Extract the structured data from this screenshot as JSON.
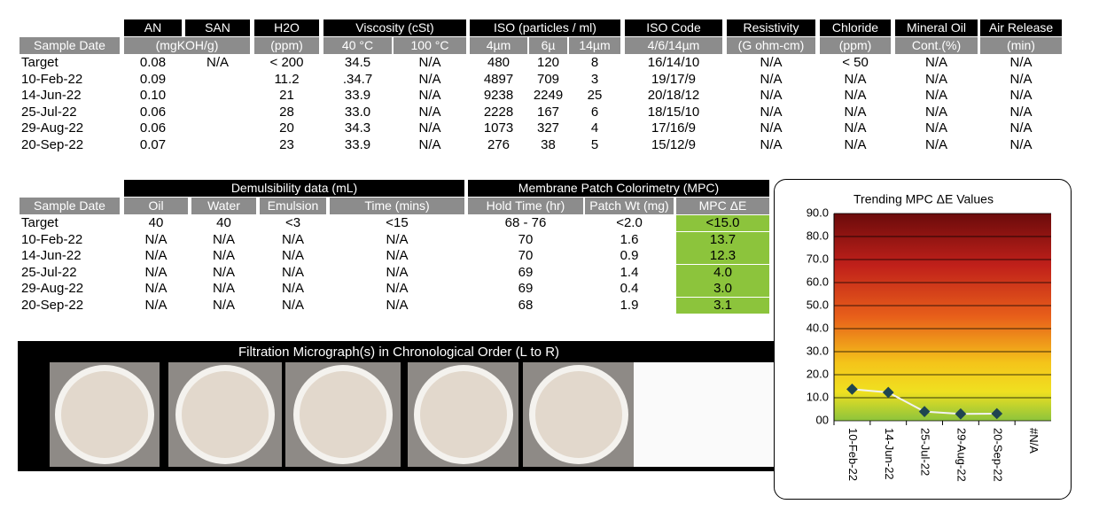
{
  "table1": {
    "group_headers": [
      "AN",
      "SAN",
      "H2O",
      "Viscosity (cSt)",
      "ISO (particles / ml)",
      "ISO Code",
      "Resistivity",
      "Chloride",
      "Mineral Oil",
      "Air Release"
    ],
    "sub_headers": [
      "Sample Date",
      "(mgKOH/g)",
      "(ppm)",
      "40 °C",
      "100 °C",
      "4µm",
      "6µ",
      "14µm",
      "4/6/14µm",
      "(G ohm-cm)",
      "(ppm)",
      "Cont.(%)",
      "(min)"
    ],
    "rows": [
      [
        "Target",
        "0.08",
        "N/A",
        "< 200",
        "34.5",
        "N/A",
        "480",
        "120",
        "8",
        "16/14/10",
        "N/A",
        "< 50",
        "N/A",
        "N/A"
      ],
      [
        "10-Feb-22",
        "0.09",
        null,
        "11.2",
        ".34.7",
        "N/A",
        "4897",
        "709",
        "3",
        "19/17/9",
        "N/A",
        "N/A",
        "N/A",
        "N/A"
      ],
      [
        "14-Jun-22",
        "0.10",
        null,
        "21",
        "33.9",
        "N/A",
        "9238",
        "2249",
        "25",
        "20/18/12",
        "N/A",
        "N/A",
        "N/A",
        "N/A"
      ],
      [
        "25-Jul-22",
        "0.06",
        null,
        "28",
        "33.0",
        "N/A",
        "2228",
        "167",
        "6",
        "18/15/10",
        "N/A",
        "N/A",
        "N/A",
        "N/A"
      ],
      [
        "29-Aug-22",
        "0.06",
        null,
        "20",
        "34.3",
        "N/A",
        "1073",
        "327",
        "4",
        "17/16/9",
        "N/A",
        "N/A",
        "N/A",
        "N/A"
      ],
      [
        "20-Sep-22",
        "0.07",
        null,
        "23",
        "33.9",
        "N/A",
        "276",
        "38",
        "5",
        "15/12/9",
        "N/A",
        "N/A",
        "N/A",
        "N/A"
      ]
    ]
  },
  "table2": {
    "group_headers": [
      "Demulsibility data (mL)",
      "Membrane Patch Colorimetry (MPC)"
    ],
    "sub_headers": [
      "Sample Date",
      "Oil",
      "Water",
      "Emulsion",
      "Time (mins)",
      "Hold Time (hr)",
      "Patch Wt (mg)",
      "MPC ΔE"
    ],
    "rows": [
      [
        "Target",
        "40",
        "40",
        "<3",
        "<15",
        "68 - 76",
        "<2.0",
        "<15.0"
      ],
      [
        "10-Feb-22",
        "N/A",
        "N/A",
        "N/A",
        "N/A",
        "70",
        "1.6",
        "13.7"
      ],
      [
        "14-Jun-22",
        "N/A",
        "N/A",
        "N/A",
        "N/A",
        "70",
        "0.9",
        "12.3"
      ],
      [
        "25-Jul-22",
        "N/A",
        "N/A",
        "N/A",
        "N/A",
        "69",
        "1.4",
        "4.0"
      ],
      [
        "29-Aug-22",
        "N/A",
        "N/A",
        "N/A",
        "N/A",
        "69",
        "0.4",
        "3.0"
      ],
      [
        "20-Sep-22",
        "N/A",
        "N/A",
        "N/A",
        "N/A",
        "68",
        "1.9",
        "3.1"
      ]
    ]
  },
  "micrograph": {
    "title": "Filtration Micrograph(s) in Chronological Order (L to R)"
  },
  "chart_data": {
    "type": "line",
    "title": "Trending MPC ΔE Values",
    "categories": [
      "10-Feb-22",
      "14-Jun-22",
      "25-Jul-22",
      "29-Aug-22",
      "20-Sep-22",
      "#N/A"
    ],
    "series": [
      {
        "color": "#1f4550",
        "line_color": "#f2f2f2",
        "values": [
          13.7,
          12.3,
          4.0,
          3.0,
          3.1,
          null
        ]
      }
    ],
    "ylim": [
      0,
      90
    ],
    "yticks": [
      {
        "value": 0,
        "label": "00"
      },
      {
        "value": 10,
        "label": "10.0"
      },
      {
        "value": 20,
        "label": "20.0"
      },
      {
        "value": 30,
        "label": "30.0"
      },
      {
        "value": 40,
        "label": "40.0"
      },
      {
        "value": 50,
        "label": "50.0"
      },
      {
        "value": 60,
        "label": "60.0"
      },
      {
        "value": 70,
        "label": "70.0"
      },
      {
        "value": 80,
        "label": "80.0"
      },
      {
        "value": 90,
        "label": "90.0"
      }
    ],
    "grid": true
  }
}
